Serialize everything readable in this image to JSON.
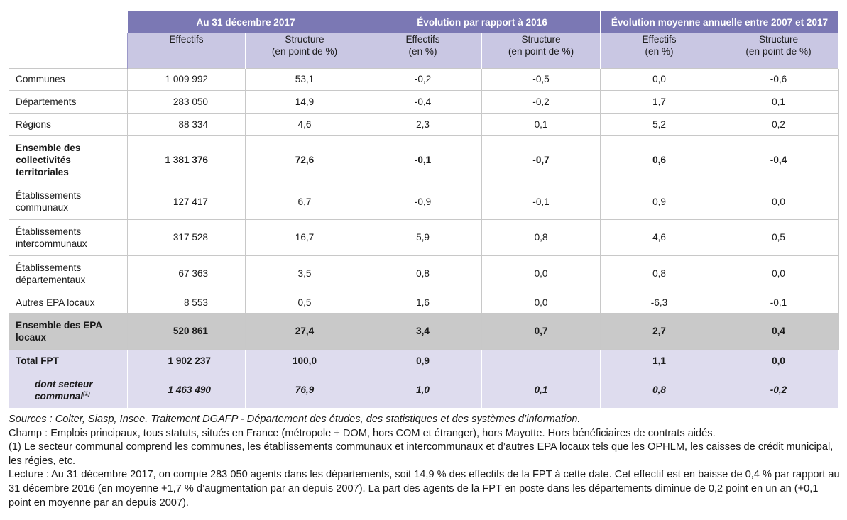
{
  "header": {
    "group1": "Au 31 décembre 2017",
    "group2": "Évolution par rapport à 2016",
    "group3": "Évolution moyenne annuelle entre 2007 et 2017",
    "sub": [
      {
        "l1": "Effectifs",
        "l2": ""
      },
      {
        "l1": "Structure",
        "l2": "(en point de %)"
      },
      {
        "l1": "Effectifs",
        "l2": "(en %)"
      },
      {
        "l1": "Structure",
        "l2": "(en point de %)"
      },
      {
        "l1": "Effectifs",
        "l2": "(en %)"
      },
      {
        "l1": "Structure",
        "l2": "(en point de %)"
      }
    ]
  },
  "rows": [
    {
      "label": [
        "Communes"
      ],
      "values": [
        "1 009 992",
        "53,1",
        "-0,2",
        "-0,5",
        "0,0",
        "-0,6"
      ]
    },
    {
      "label": [
        "Départements"
      ],
      "values": [
        "283 050",
        "14,9",
        "-0,4",
        "-0,2",
        "1,7",
        "0,1"
      ]
    },
    {
      "label": [
        "Régions"
      ],
      "values": [
        "88 334",
        "4,6",
        "2,3",
        "0,1",
        "5,2",
        "0,2"
      ]
    },
    {
      "label": [
        "Ensemble des",
        "collectivités",
        "territoriales"
      ],
      "values": [
        "1 381 376",
        "72,6",
        "-0,1",
        "-0,7",
        "0,6",
        "-0,4"
      ]
    },
    {
      "label": [
        "Établissements",
        "communaux"
      ],
      "values": [
        "127 417",
        "6,7",
        "-0,9",
        "-0,1",
        "0,9",
        "0,0"
      ]
    },
    {
      "label": [
        "Établissements",
        "intercommunaux"
      ],
      "values": [
        "317 528",
        "16,7",
        "5,9",
        "0,8",
        "4,6",
        "0,5"
      ]
    },
    {
      "label": [
        "Établissements",
        "départementaux"
      ],
      "values": [
        "67 363",
        "3,5",
        "0,8",
        "0,0",
        "0,8",
        "0,0"
      ]
    },
    {
      "label": [
        "Autres EPA locaux"
      ],
      "values": [
        "8 553",
        "0,5",
        "1,6",
        "0,0",
        "-6,3",
        "-0,1"
      ]
    },
    {
      "label": [
        "Ensemble des EPA",
        "locaux"
      ],
      "values": [
        "520 861",
        "27,4",
        "3,4",
        "0,7",
        "2,7",
        "0,4"
      ]
    },
    {
      "label": [
        "Total FPT"
      ],
      "values": [
        "1 902 237",
        "100,0",
        "0,9",
        "",
        "1,1",
        "0,0"
      ]
    },
    {
      "label": [
        "dont secteur",
        "communal"
      ],
      "note_ref": "(1)",
      "values": [
        "1 463 490",
        "76,9",
        "1,0",
        "0,1",
        "0,8",
        "-0,2"
      ]
    }
  ],
  "notes": {
    "sources": "Sources : Colter, Siasp, Insee. Traitement DGAFP - Département des études, des statistiques et des systèmes d’information.",
    "champ": "Champ : Emplois principaux, tous statuts, situés en France (métropole + DOM, hors COM et étranger), hors Mayotte. Hors bénéficiaires de contrats aidés.",
    "note1": "(1) Le secteur communal comprend les communes, les établissements communaux et intercommunaux et d’autres EPA locaux tels que les OPHLM, les caisses de crédit municipal, les régies, etc.",
    "lecture": "Lecture : Au 31 décembre 2017, on compte 283 050 agents dans les départements, soit 14,9 % des effectifs de la FPT à cette date. Cet effectif est en baisse de 0,4 % par rapport au 31 décembre 2016 (en moyenne +1,7 % d’augmentation par an depuis 2007). La part des agents de la FPT en poste dans les départements diminue de 0,2 point en un an (+0,1 point en moyenne par an depuis 2007)."
  }
}
